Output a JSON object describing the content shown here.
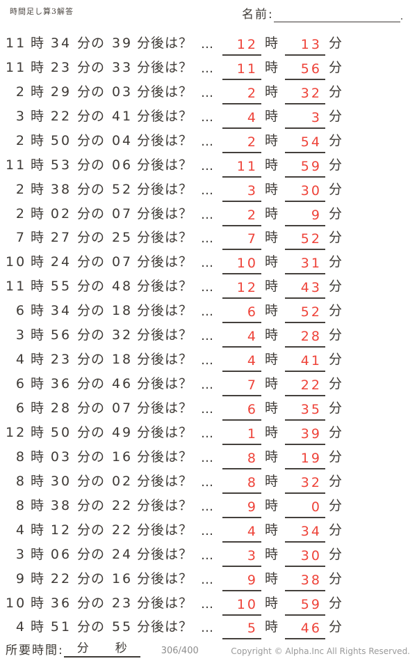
{
  "document": {
    "title": "時間足し算3解答"
  },
  "header": {
    "name_label": "名前:",
    "name_line_period": "."
  },
  "labels": {
    "hour_unit": "時",
    "minute_unit": "分",
    "minute_of": "分の",
    "after_question": "分後は？",
    "dots": "…"
  },
  "problems": [
    {
      "hour": "11",
      "minute": "34",
      "add": "39",
      "ans_hour": "12",
      "ans_min": "13"
    },
    {
      "hour": "11",
      "minute": "23",
      "add": "33",
      "ans_hour": "11",
      "ans_min": "56"
    },
    {
      "hour": "2",
      "minute": "29",
      "add": "03",
      "ans_hour": "2",
      "ans_min": "32"
    },
    {
      "hour": "3",
      "minute": "22",
      "add": "41",
      "ans_hour": "4",
      "ans_min": "3"
    },
    {
      "hour": "2",
      "minute": "50",
      "add": "04",
      "ans_hour": "2",
      "ans_min": "54"
    },
    {
      "hour": "11",
      "minute": "53",
      "add": "06",
      "ans_hour": "11",
      "ans_min": "59"
    },
    {
      "hour": "2",
      "minute": "38",
      "add": "52",
      "ans_hour": "3",
      "ans_min": "30"
    },
    {
      "hour": "2",
      "minute": "02",
      "add": "07",
      "ans_hour": "2",
      "ans_min": "9"
    },
    {
      "hour": "7",
      "minute": "27",
      "add": "25",
      "ans_hour": "7",
      "ans_min": "52"
    },
    {
      "hour": "10",
      "minute": "24",
      "add": "07",
      "ans_hour": "10",
      "ans_min": "31"
    },
    {
      "hour": "11",
      "minute": "55",
      "add": "48",
      "ans_hour": "12",
      "ans_min": "43"
    },
    {
      "hour": "6",
      "minute": "34",
      "add": "18",
      "ans_hour": "6",
      "ans_min": "52"
    },
    {
      "hour": "3",
      "minute": "56",
      "add": "32",
      "ans_hour": "4",
      "ans_min": "28"
    },
    {
      "hour": "4",
      "minute": "23",
      "add": "18",
      "ans_hour": "4",
      "ans_min": "41"
    },
    {
      "hour": "6",
      "minute": "36",
      "add": "46",
      "ans_hour": "7",
      "ans_min": "22"
    },
    {
      "hour": "6",
      "minute": "28",
      "add": "07",
      "ans_hour": "6",
      "ans_min": "35"
    },
    {
      "hour": "12",
      "minute": "50",
      "add": "49",
      "ans_hour": "1",
      "ans_min": "39"
    },
    {
      "hour": "8",
      "minute": "03",
      "add": "16",
      "ans_hour": "8",
      "ans_min": "19"
    },
    {
      "hour": "8",
      "minute": "30",
      "add": "02",
      "ans_hour": "8",
      "ans_min": "32"
    },
    {
      "hour": "8",
      "minute": "38",
      "add": "22",
      "ans_hour": "9",
      "ans_min": "0"
    },
    {
      "hour": "4",
      "minute": "12",
      "add": "22",
      "ans_hour": "4",
      "ans_min": "34"
    },
    {
      "hour": "3",
      "minute": "06",
      "add": "24",
      "ans_hour": "3",
      "ans_min": "30"
    },
    {
      "hour": "9",
      "minute": "22",
      "add": "16",
      "ans_hour": "9",
      "ans_min": "38"
    },
    {
      "hour": "10",
      "minute": "36",
      "add": "23",
      "ans_hour": "10",
      "ans_min": "59"
    },
    {
      "hour": "4",
      "minute": "51",
      "add": "55",
      "ans_hour": "5",
      "ans_min": "46"
    }
  ],
  "footer": {
    "time_label": "所要時間:",
    "min_unit": "分",
    "sec_unit": "秒",
    "counter": "306/400",
    "copyright": "Copyright ©  Alpha.Inc All Rights Reserved."
  },
  "colors": {
    "ink": "#3e3a36",
    "answer_red": "#ee4339",
    "muted_gray": "#8d8d8d"
  }
}
